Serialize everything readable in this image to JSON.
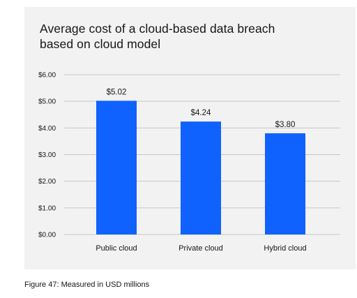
{
  "chart_data": {
    "type": "bar",
    "title": "Average cost of a cloud-based data breach based on cloud model",
    "title_lines": [
      "Average cost of a cloud-based data breach",
      "based on cloud model"
    ],
    "categories": [
      "Public cloud",
      "Private cloud",
      "Hybrid cloud"
    ],
    "values": [
      5.02,
      4.24,
      3.8
    ],
    "data_labels": [
      "$5.02",
      "$4.24",
      "$3.80"
    ],
    "ylim": [
      0,
      6
    ],
    "yticks": [
      0,
      1,
      2,
      3,
      4,
      5,
      6
    ],
    "ytick_labels": [
      "$0.00",
      "$1.00",
      "$2.00",
      "$3.00",
      "$4.00",
      "$5.00",
      "$6.00"
    ],
    "xlabel": "",
    "ylabel": "",
    "grid": true,
    "bar_color": "#0f62fe",
    "grid_color": "#c6c6c6"
  },
  "caption": "Figure 47: Measured in USD millions"
}
